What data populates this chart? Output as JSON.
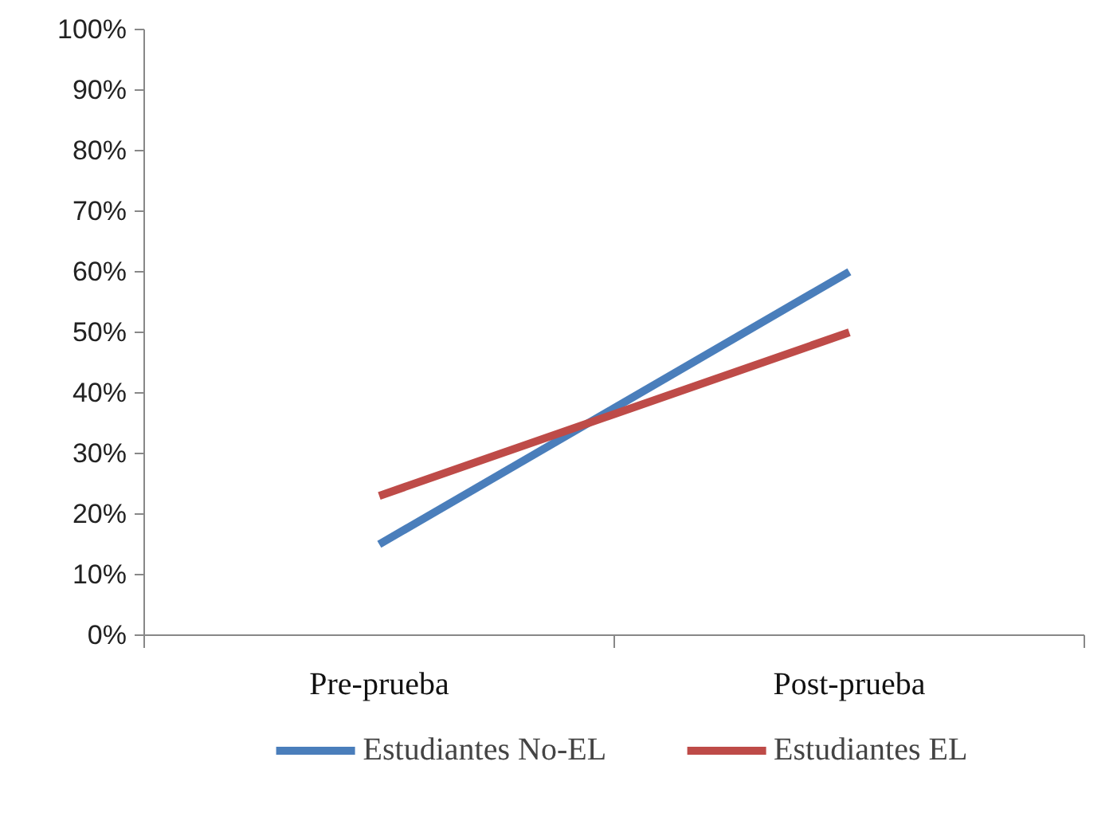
{
  "chart_data": {
    "type": "line",
    "categories": [
      "Pre-prueba",
      "Post-prueba"
    ],
    "series": [
      {
        "name": "Estudiantes No-EL",
        "color": "#4a7ebb",
        "values": [
          15,
          60
        ]
      },
      {
        "name": "Estudiantes EL",
        "color": "#be4b48",
        "values": [
          23,
          50
        ]
      }
    ],
    "ylim": [
      0,
      100
    ],
    "yticks": [
      {
        "value": 0,
        "label": "0%"
      },
      {
        "value": 10,
        "label": "10%"
      },
      {
        "value": 20,
        "label": "20%"
      },
      {
        "value": 30,
        "label": "30%"
      },
      {
        "value": 40,
        "label": "40%"
      },
      {
        "value": 50,
        "label": "50%"
      },
      {
        "value": 60,
        "label": "60%"
      },
      {
        "value": 70,
        "label": "70%"
      },
      {
        "value": 80,
        "label": "80%"
      },
      {
        "value": 90,
        "label": "90%"
      },
      {
        "value": 100,
        "label": "100%"
      }
    ],
    "grid": false,
    "legend": "bottom",
    "marker": "none",
    "line_style": "solid"
  }
}
